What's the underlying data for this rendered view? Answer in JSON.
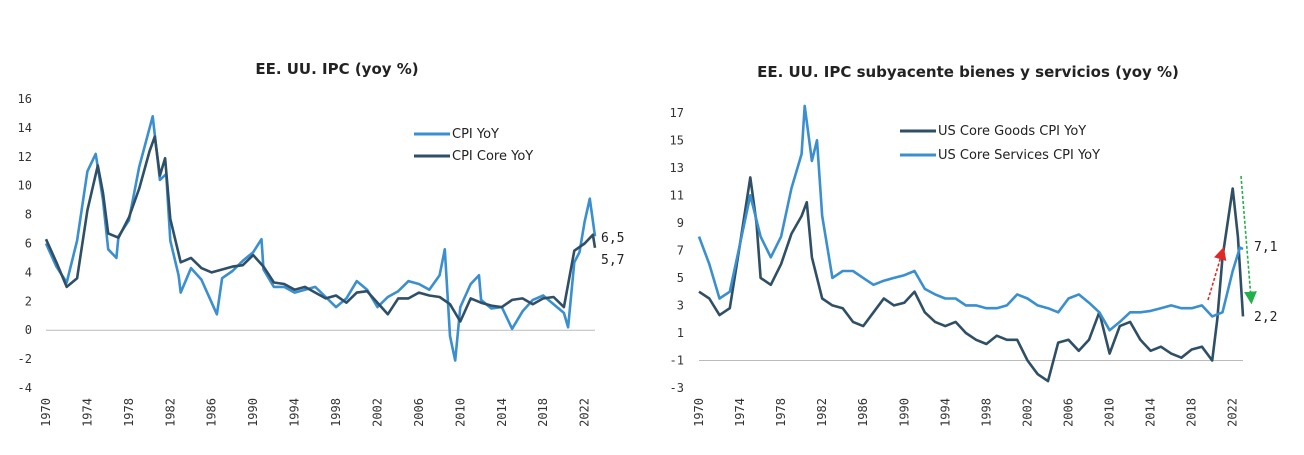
{
  "colors": {
    "light_blue": "#3a8fd0",
    "dark_navy": "#2f4f66",
    "red_arrow": "#e02828",
    "green_arrow": "#22b04a"
  },
  "chart_data": [
    {
      "type": "line",
      "title": "EE. UU. IPC (yoy %)",
      "xlabel": "",
      "ylabel": "",
      "xlim": [
        1970,
        2023
      ],
      "ylim": [
        -4,
        16
      ],
      "x_ticks": [
        "1970",
        "1974",
        "1978",
        "1982",
        "1986",
        "1990",
        "1994",
        "1998",
        "2002",
        "2006",
        "2010",
        "2014",
        "2018",
        "2022"
      ],
      "y_ticks": [
        "-4",
        "-2",
        "0",
        "2",
        "4",
        "6",
        "8",
        "10",
        "12",
        "14",
        "16"
      ],
      "legend_position": "top-right",
      "end_labels": [
        "6,5",
        "5,7"
      ],
      "series": [
        {
          "name": "CPI YoY",
          "color": "#3a8fd0",
          "points": [
            [
              1970,
              6.0
            ],
            [
              1971,
              4.4
            ],
            [
              1972,
              3.3
            ],
            [
              1973,
              6.2
            ],
            [
              1974,
              11.0
            ],
            [
              1974.8,
              12.2
            ],
            [
              1975.5,
              9.0
            ],
            [
              1976,
              5.6
            ],
            [
              1976.8,
              5.0
            ],
            [
              1977,
              6.5
            ],
            [
              1978,
              7.6
            ],
            [
              1979,
              11.3
            ],
            [
              1980,
              14.0
            ],
            [
              1980.3,
              14.8
            ],
            [
              1981,
              10.4
            ],
            [
              1981.6,
              10.8
            ],
            [
              1982,
              6.2
            ],
            [
              1982.8,
              3.8
            ],
            [
              1983,
              2.6
            ],
            [
              1984,
              4.3
            ],
            [
              1985,
              3.5
            ],
            [
              1986,
              1.9
            ],
            [
              1986.5,
              1.1
            ],
            [
              1987,
              3.6
            ],
            [
              1988,
              4.1
            ],
            [
              1989,
              4.8
            ],
            [
              1990,
              5.4
            ],
            [
              1990.8,
              6.3
            ],
            [
              1991,
              4.2
            ],
            [
              1992,
              3.0
            ],
            [
              1993,
              3.0
            ],
            [
              1994,
              2.6
            ],
            [
              1995,
              2.8
            ],
            [
              1996,
              3.0
            ],
            [
              1997,
              2.3
            ],
            [
              1998,
              1.6
            ],
            [
              1999,
              2.2
            ],
            [
              2000,
              3.4
            ],
            [
              2001,
              2.8
            ],
            [
              2002,
              1.6
            ],
            [
              2003,
              2.3
            ],
            [
              2004,
              2.7
            ],
            [
              2005,
              3.4
            ],
            [
              2006,
              3.2
            ],
            [
              2007,
              2.8
            ],
            [
              2008,
              3.8
            ],
            [
              2008.5,
              5.6
            ],
            [
              2009,
              -0.4
            ],
            [
              2009.5,
              -2.1
            ],
            [
              2010,
              1.6
            ],
            [
              2011,
              3.2
            ],
            [
              2011.8,
              3.8
            ],
            [
              2012,
              2.1
            ],
            [
              2013,
              1.5
            ],
            [
              2014,
              1.6
            ],
            [
              2015,
              0.1
            ],
            [
              2016,
              1.3
            ],
            [
              2017,
              2.1
            ],
            [
              2018,
              2.4
            ],
            [
              2019,
              1.8
            ],
            [
              2020,
              1.2
            ],
            [
              2020.4,
              0.2
            ],
            [
              2021,
              4.7
            ],
            [
              2021.5,
              5.4
            ],
            [
              2022,
              7.5
            ],
            [
              2022.5,
              9.1
            ],
            [
              2023,
              6.5
            ]
          ]
        },
        {
          "name": "CPI  Core YoY",
          "color": "#2f4f66",
          "points": [
            [
              1970,
              6.3
            ],
            [
              1971,
              4.7
            ],
            [
              1972,
              3.0
            ],
            [
              1973,
              3.6
            ],
            [
              1974,
              8.3
            ],
            [
              1975,
              11.4
            ],
            [
              1975.5,
              9.5
            ],
            [
              1976,
              6.7
            ],
            [
              1977,
              6.4
            ],
            [
              1978,
              7.8
            ],
            [
              1979,
              9.8
            ],
            [
              1980,
              12.4
            ],
            [
              1980.5,
              13.4
            ],
            [
              1981,
              10.7
            ],
            [
              1981.5,
              11.9
            ],
            [
              1982,
              7.7
            ],
            [
              1983,
              4.7
            ],
            [
              1984,
              5.0
            ],
            [
              1985,
              4.3
            ],
            [
              1986,
              4.0
            ],
            [
              1987,
              4.2
            ],
            [
              1988,
              4.4
            ],
            [
              1989,
              4.5
            ],
            [
              1990,
              5.2
            ],
            [
              1991,
              4.4
            ],
            [
              1992,
              3.3
            ],
            [
              1993,
              3.2
            ],
            [
              1994,
              2.8
            ],
            [
              1995,
              3.0
            ],
            [
              1996,
              2.6
            ],
            [
              1997,
              2.2
            ],
            [
              1998,
              2.4
            ],
            [
              1999,
              1.9
            ],
            [
              2000,
              2.6
            ],
            [
              2001,
              2.7
            ],
            [
              2002,
              1.9
            ],
            [
              2003,
              1.1
            ],
            [
              2004,
              2.2
            ],
            [
              2005,
              2.2
            ],
            [
              2006,
              2.6
            ],
            [
              2007,
              2.4
            ],
            [
              2008,
              2.3
            ],
            [
              2009,
              1.8
            ],
            [
              2010,
              0.6
            ],
            [
              2011,
              2.2
            ],
            [
              2012,
              1.9
            ],
            [
              2013,
              1.7
            ],
            [
              2014,
              1.6
            ],
            [
              2015,
              2.1
            ],
            [
              2016,
              2.2
            ],
            [
              2017,
              1.8
            ],
            [
              2018,
              2.2
            ],
            [
              2019,
              2.3
            ],
            [
              2020,
              1.6
            ],
            [
              2021,
              5.5
            ],
            [
              2022,
              6.0
            ],
            [
              2022.8,
              6.6
            ],
            [
              2023,
              5.7
            ]
          ]
        }
      ]
    },
    {
      "type": "line",
      "title": "EE. UU. IPC subyacente bienes y servicios (yoy %)",
      "xlabel": "",
      "ylabel": "",
      "xlim": [
        1970,
        2023
      ],
      "ylim": [
        -3,
        18
      ],
      "x_ticks": [
        "1970",
        "1974",
        "1978",
        "1982",
        "1986",
        "1990",
        "1994",
        "1998",
        "2002",
        "2006",
        "2010",
        "2014",
        "2018",
        "2022"
      ],
      "y_ticks": [
        "-3",
        "-1",
        "1",
        "3",
        "5",
        "7",
        "9",
        "11",
        "13",
        "15",
        "17"
      ],
      "legend_position": "top-right",
      "end_labels": [
        "7,1",
        "2,2"
      ],
      "series": [
        {
          "name": "US Core Goods CPI YoY",
          "color": "#2f4f66",
          "points": [
            [
              1970,
              4.0
            ],
            [
              1971,
              3.5
            ],
            [
              1972,
              2.3
            ],
            [
              1973,
              2.8
            ],
            [
              1974,
              7.5
            ],
            [
              1975,
              12.3
            ],
            [
              1975.6,
              9.0
            ],
            [
              1976,
              5.0
            ],
            [
              1977,
              4.5
            ],
            [
              1978,
              6.0
            ],
            [
              1979,
              8.2
            ],
            [
              1980,
              9.5
            ],
            [
              1980.5,
              10.5
            ],
            [
              1981,
              6.5
            ],
            [
              1982,
              3.5
            ],
            [
              1983,
              3.0
            ],
            [
              1984,
              2.8
            ],
            [
              1985,
              1.8
            ],
            [
              1986,
              1.5
            ],
            [
              1987,
              2.5
            ],
            [
              1988,
              3.5
            ],
            [
              1989,
              3.0
            ],
            [
              1990,
              3.2
            ],
            [
              1991,
              4.0
            ],
            [
              1992,
              2.5
            ],
            [
              1993,
              1.8
            ],
            [
              1994,
              1.5
            ],
            [
              1995,
              1.8
            ],
            [
              1996,
              1.0
            ],
            [
              1997,
              0.5
            ],
            [
              1998,
              0.2
            ],
            [
              1999,
              0.8
            ],
            [
              2000,
              0.5
            ],
            [
              2001,
              0.5
            ],
            [
              2002,
              -1.0
            ],
            [
              2003,
              -2.0
            ],
            [
              2004,
              -2.5
            ],
            [
              2005,
              0.3
            ],
            [
              2006,
              0.5
            ],
            [
              2007,
              -0.3
            ],
            [
              2008,
              0.5
            ],
            [
              2009,
              2.5
            ],
            [
              2010,
              -0.5
            ],
            [
              2011,
              1.5
            ],
            [
              2012,
              1.8
            ],
            [
              2013,
              0.5
            ],
            [
              2014,
              -0.3
            ],
            [
              2015,
              0.0
            ],
            [
              2016,
              -0.5
            ],
            [
              2017,
              -0.8
            ],
            [
              2018,
              -0.2
            ],
            [
              2019,
              0.0
            ],
            [
              2020,
              -1.0
            ],
            [
              2020.5,
              2.0
            ],
            [
              2021,
              6.5
            ],
            [
              2022,
              11.5
            ],
            [
              2022.5,
              8.0
            ],
            [
              2023,
              2.2
            ]
          ]
        },
        {
          "name": "US Core Services CPI YoY",
          "color": "#3a8fd0",
          "points": [
            [
              1970,
              8.0
            ],
            [
              1971,
              6.0
            ],
            [
              1972,
              3.5
            ],
            [
              1973,
              4.0
            ],
            [
              1974,
              7.5
            ],
            [
              1975,
              11.0
            ],
            [
              1976,
              8.0
            ],
            [
              1977,
              6.5
            ],
            [
              1978,
              8.0
            ],
            [
              1979,
              11.5
            ],
            [
              1980,
              14.0
            ],
            [
              1980.3,
              17.5
            ],
            [
              1981,
              13.5
            ],
            [
              1981.5,
              15.0
            ],
            [
              1982,
              9.5
            ],
            [
              1983,
              5.0
            ],
            [
              1984,
              5.5
            ],
            [
              1985,
              5.5
            ],
            [
              1986,
              5.0
            ],
            [
              1987,
              4.5
            ],
            [
              1988,
              4.8
            ],
            [
              1989,
              5.0
            ],
            [
              1990,
              5.2
            ],
            [
              1991,
              5.5
            ],
            [
              1992,
              4.2
            ],
            [
              1993,
              3.8
            ],
            [
              1994,
              3.5
            ],
            [
              1995,
              3.5
            ],
            [
              1996,
              3.0
            ],
            [
              1997,
              3.0
            ],
            [
              1998,
              2.8
            ],
            [
              1999,
              2.8
            ],
            [
              2000,
              3.0
            ],
            [
              2001,
              3.8
            ],
            [
              2002,
              3.5
            ],
            [
              2003,
              3.0
            ],
            [
              2004,
              2.8
            ],
            [
              2005,
              2.5
            ],
            [
              2006,
              3.5
            ],
            [
              2007,
              3.8
            ],
            [
              2008,
              3.2
            ],
            [
              2009,
              2.5
            ],
            [
              2010,
              1.2
            ],
            [
              2011,
              1.8
            ],
            [
              2012,
              2.5
            ],
            [
              2013,
              2.5
            ],
            [
              2014,
              2.6
            ],
            [
              2015,
              2.8
            ],
            [
              2016,
              3.0
            ],
            [
              2017,
              2.8
            ],
            [
              2018,
              2.8
            ],
            [
              2019,
              3.0
            ],
            [
              2020,
              2.2
            ],
            [
              2021,
              2.5
            ],
            [
              2022,
              5.5
            ],
            [
              2022.7,
              7.2
            ],
            [
              2023,
              7.1
            ]
          ]
        }
      ]
    }
  ]
}
